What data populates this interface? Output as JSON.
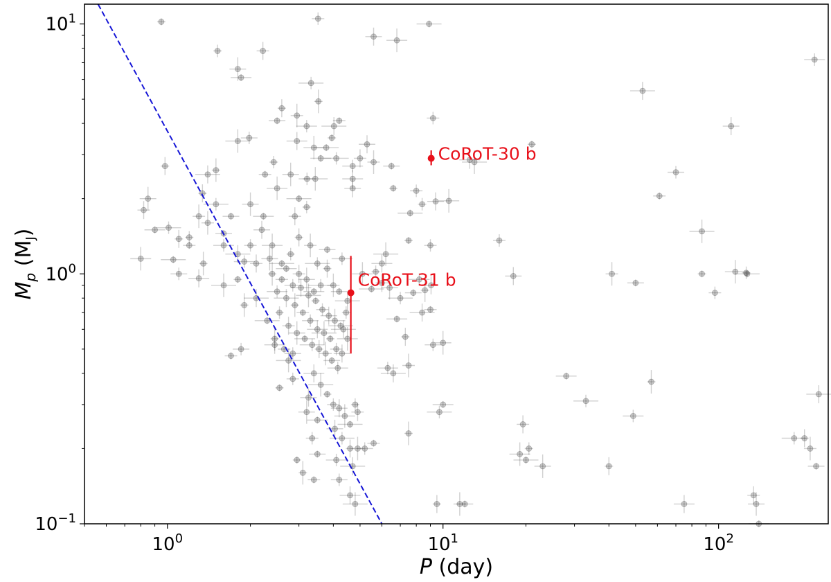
{
  "chart_data": {
    "type": "scatter",
    "xlabel": {
      "var": "P",
      "rest": " (day)"
    },
    "ylabel": {
      "var": "M",
      "sub": "p",
      "unit_open": "  (M",
      "unit_sub": "J",
      "unit_close": ")"
    },
    "x_scale": "log",
    "y_scale": "log",
    "xlim": [
      0.5,
      250
    ],
    "ylim": [
      0.1,
      12
    ],
    "grid": false,
    "x_ticks": [
      {
        "value": 1,
        "base": "10",
        "exp": "0"
      },
      {
        "value": 10,
        "base": "10",
        "exp": "1"
      },
      {
        "value": 100,
        "base": "10",
        "exp": "2"
      }
    ],
    "y_ticks": [
      {
        "value": 0.1,
        "base": "10",
        "exp": "−1"
      },
      {
        "value": 1,
        "base": "10",
        "exp": "0"
      },
      {
        "value": 10,
        "base": "10",
        "exp": "1"
      }
    ],
    "colors": {
      "background": "#2b2b2b",
      "highlight": "#e8101a",
      "boundary_line": "#1515d6"
    },
    "boundary_line": {
      "style": "dashed",
      "from": [
        0.56,
        12
      ],
      "to": [
        6.0,
        0.1
      ]
    },
    "highlighted": [
      {
        "name": "CoRoT-30 b",
        "x": 9.06,
        "y": 2.9,
        "y_lo": 2.72,
        "y_hi": 3.12
      },
      {
        "name": "CoRoT-31 b",
        "x": 4.63,
        "y": 0.84,
        "y_lo": 0.48,
        "y_hi": 1.18
      }
    ],
    "background_planets": [
      [
        0.95,
        10.2
      ],
      [
        3.52,
        10.5
      ],
      [
        5.6,
        8.9
      ],
      [
        6.8,
        8.6
      ],
      [
        8.9,
        10.0
      ],
      [
        1.52,
        7.8
      ],
      [
        2.22,
        7.8
      ],
      [
        1.8,
        6.6
      ],
      [
        1.85,
        6.1
      ],
      [
        3.32,
        5.8
      ],
      [
        2.6,
        4.6
      ],
      [
        2.95,
        4.3
      ],
      [
        2.5,
        4.1
      ],
      [
        3.2,
        3.9
      ],
      [
        4.02,
        3.9
      ],
      [
        3.53,
        4.9
      ],
      [
        4.2,
        4.1
      ],
      [
        1.98,
        3.5
      ],
      [
        2.95,
        3.4
      ],
      [
        1.8,
        3.4
      ],
      [
        3.95,
        3.5
      ],
      [
        9.2,
        4.2
      ],
      [
        5.3,
        3.3
      ],
      [
        3.4,
        3.2
      ],
      [
        3.77,
        3.2
      ],
      [
        2.43,
        2.8
      ],
      [
        5.0,
        2.9
      ],
      [
        2.8,
        2.5
      ],
      [
        3.6,
        2.9
      ],
      [
        4.1,
        2.9
      ],
      [
        0.98,
        2.7
      ],
      [
        5.6,
        2.8
      ],
      [
        6.5,
        2.7
      ],
      [
        4.7,
        2.7
      ],
      [
        1.4,
        2.5
      ],
      [
        1.5,
        2.6
      ],
      [
        2.26,
        2.5
      ],
      [
        3.21,
        2.4
      ],
      [
        4.7,
        2.4
      ],
      [
        3.44,
        2.4
      ],
      [
        6.6,
        2.2
      ],
      [
        8.0,
        2.15
      ],
      [
        4.7,
        2.2
      ],
      [
        2.5,
        2.2
      ],
      [
        3.0,
        2.0
      ],
      [
        3.2,
        1.85
      ],
      [
        2.9,
        1.7
      ],
      [
        2.0,
        1.9
      ],
      [
        2.23,
        1.7
      ],
      [
        1.5,
        1.9
      ],
      [
        1.34,
        2.1
      ],
      [
        1.4,
        1.6
      ],
      [
        1.7,
        1.7
      ],
      [
        1.6,
        1.3
      ],
      [
        1.8,
        1.2
      ],
      [
        1.35,
        1.1
      ],
      [
        1.2,
        1.3
      ],
      [
        1.1,
        1.0
      ],
      [
        1.3,
        0.96
      ],
      [
        1.6,
        0.9
      ],
      [
        1.8,
        0.95
      ],
      [
        2.0,
        1.3
      ],
      [
        2.2,
        1.5
      ],
      [
        2.4,
        1.3
      ],
      [
        2.6,
        1.1
      ],
      [
        2.8,
        1.2
      ],
      [
        3.0,
        1.0
      ],
      [
        3.2,
        0.95
      ],
      [
        3.4,
        0.85
      ],
      [
        3.6,
        0.9
      ],
      [
        3.8,
        1.05
      ],
      [
        4.0,
        0.9
      ],
      [
        4.2,
        0.85
      ],
      [
        2.5,
        0.85
      ],
      [
        2.7,
        0.8
      ],
      [
        2.9,
        0.75
      ],
      [
        3.1,
        0.7
      ],
      [
        3.3,
        0.65
      ],
      [
        3.5,
        0.6
      ],
      [
        3.7,
        0.58
      ],
      [
        3.9,
        0.55
      ],
      [
        4.1,
        0.5
      ],
      [
        4.3,
        0.48
      ],
      [
        4.5,
        0.55
      ],
      [
        2.3,
        0.65
      ],
      [
        2.55,
        0.7
      ],
      [
        2.75,
        0.62
      ],
      [
        2.95,
        0.58
      ],
      [
        3.15,
        0.55
      ],
      [
        3.35,
        0.52
      ],
      [
        3.55,
        0.5
      ],
      [
        3.75,
        0.48
      ],
      [
        3.95,
        0.45
      ],
      [
        4.15,
        0.42
      ],
      [
        4.35,
        0.6
      ],
      [
        2.4,
        1.0
      ],
      [
        2.6,
        0.95
      ],
      [
        2.85,
        0.9
      ],
      [
        3.05,
        0.88
      ],
      [
        3.25,
        0.82
      ],
      [
        3.45,
        0.78
      ],
      [
        3.65,
        0.72
      ],
      [
        3.85,
        0.68
      ],
      [
        4.05,
        0.65
      ],
      [
        4.25,
        0.62
      ],
      [
        4.45,
        0.7
      ],
      [
        2.1,
        1.1
      ],
      [
        2.35,
        1.15
      ],
      [
        2.7,
        1.05
      ],
      [
        3.5,
        1.1
      ],
      [
        3.0,
        1.4
      ],
      [
        3.3,
        1.3
      ],
      [
        3.8,
        1.25
      ],
      [
        4.3,
        1.15
      ],
      [
        4.5,
        0.78
      ],
      [
        2.45,
        0.55
      ],
      [
        2.65,
        0.5
      ],
      [
        2.85,
        0.48
      ],
      [
        3.4,
        0.4
      ],
      [
        3.6,
        0.36
      ],
      [
        3.8,
        0.33
      ],
      [
        4.0,
        0.3
      ],
      [
        4.2,
        0.29
      ],
      [
        4.4,
        0.27
      ],
      [
        4.6,
        0.25
      ],
      [
        4.8,
        0.3
      ],
      [
        4.9,
        0.28
      ],
      [
        3.2,
        0.28
      ],
      [
        3.5,
        0.26
      ],
      [
        4.3,
        0.22
      ],
      [
        4.6,
        0.2
      ],
      [
        4.9,
        0.2
      ],
      [
        3.5,
        0.19
      ],
      [
        4.1,
        0.18
      ],
      [
        4.7,
        0.17
      ],
      [
        3.1,
        0.16
      ],
      [
        3.4,
        0.15
      ],
      [
        4.2,
        0.15
      ],
      [
        4.6,
        0.13
      ],
      [
        4.8,
        0.12
      ],
      [
        2.95,
        0.18
      ],
      [
        3.35,
        0.22
      ],
      [
        4.05,
        0.24
      ],
      [
        0.8,
        1.15
      ],
      [
        1.05,
        1.14
      ],
      [
        1.2,
        1.4
      ],
      [
        0.82,
        1.8
      ],
      [
        0.85,
        2.0
      ],
      [
        0.9,
        1.5
      ],
      [
        1.01,
        1.53
      ],
      [
        1.1,
        1.38
      ],
      [
        1.3,
        1.7
      ],
      [
        1.6,
        1.45
      ],
      [
        1.9,
        1.12
      ],
      [
        2.1,
        0.8
      ],
      [
        1.9,
        0.75
      ],
      [
        1.7,
        0.47
      ],
      [
        1.85,
        0.5
      ],
      [
        2.45,
        0.52
      ],
      [
        2.75,
        0.45
      ],
      [
        2.55,
        0.35
      ],
      [
        2.85,
        0.38
      ],
      [
        3.25,
        0.32
      ],
      [
        5.1,
        1.0
      ],
      [
        5.5,
        0.87
      ],
      [
        5.7,
        1.02
      ],
      [
        6.0,
        0.92
      ],
      [
        6.4,
        0.88
      ],
      [
        6.8,
        0.66
      ],
      [
        7.0,
        0.8
      ],
      [
        7.3,
        0.56
      ],
      [
        7.5,
        0.43
      ],
      [
        7.8,
        0.84
      ],
      [
        8.2,
        0.95
      ],
      [
        8.4,
        0.7
      ],
      [
        8.6,
        0.86
      ],
      [
        9.0,
        0.72
      ],
      [
        9.2,
        0.52
      ],
      [
        6.0,
        1.1
      ],
      [
        6.2,
        1.2
      ],
      [
        7.5,
        1.36
      ],
      [
        9.0,
        1.3
      ],
      [
        9.4,
        1.95
      ],
      [
        10.5,
        1.96
      ],
      [
        7.6,
        1.75
      ],
      [
        8.4,
        1.9
      ],
      [
        9.05,
        0.9
      ],
      [
        10.0,
        0.53
      ],
      [
        10.0,
        0.3
      ],
      [
        9.7,
        0.28
      ],
      [
        9.5,
        0.12
      ],
      [
        11.5,
        0.12
      ],
      [
        12.0,
        0.12
      ],
      [
        6.3,
        0.42
      ],
      [
        6.6,
        0.4
      ],
      [
        7.5,
        0.23
      ],
      [
        5.6,
        0.21
      ],
      [
        5.2,
        0.2
      ],
      [
        12.5,
        2.86
      ],
      [
        13.0,
        2.8
      ],
      [
        21.0,
        3.3
      ],
      [
        16.0,
        1.36
      ],
      [
        18.0,
        0.98
      ],
      [
        19.0,
        0.19
      ],
      [
        20.0,
        0.18
      ],
      [
        20.5,
        0.2
      ],
      [
        19.5,
        0.25
      ],
      [
        23.0,
        0.17
      ],
      [
        28.0,
        0.39
      ],
      [
        33.0,
        0.31
      ],
      [
        40.0,
        0.17
      ],
      [
        41.0,
        1.0
      ],
      [
        50.0,
        0.92
      ],
      [
        49.0,
        0.27
      ],
      [
        53.0,
        5.4
      ],
      [
        57.0,
        0.37
      ],
      [
        61.0,
        2.05
      ],
      [
        70.0,
        2.55
      ],
      [
        75.0,
        0.12
      ],
      [
        87.0,
        1.48
      ],
      [
        87.0,
        1.0
      ],
      [
        97.0,
        0.84
      ],
      [
        111.0,
        3.9
      ],
      [
        115.0,
        1.02
      ],
      [
        127.0,
        1.0
      ],
      [
        126.0,
        1.01
      ],
      [
        134.0,
        0.13
      ],
      [
        137.0,
        0.12
      ],
      [
        140.0,
        0.1
      ],
      [
        188.0,
        0.22
      ],
      [
        205.0,
        0.22
      ],
      [
        215.0,
        0.2
      ],
      [
        226.0,
        0.17
      ],
      [
        223.0,
        7.2
      ],
      [
        231.0,
        0.33
      ]
    ]
  }
}
